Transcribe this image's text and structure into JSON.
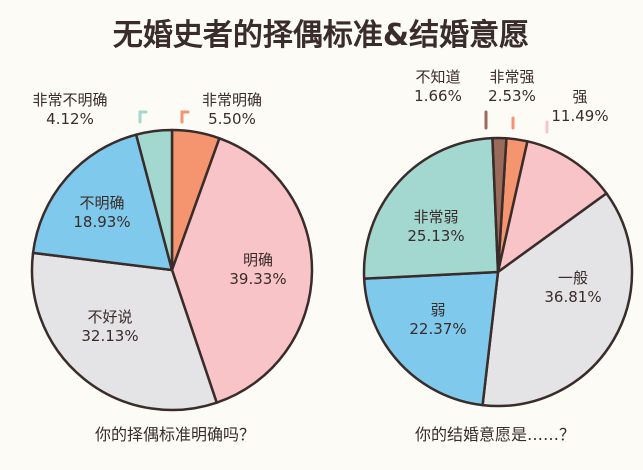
{
  "title": "无婚史者的择偶标准&结婚意愿",
  "chart_data": [
    {
      "type": "pie",
      "subtitle": "你的择偶标准明确吗？",
      "slices": [
        {
          "label": "非常明确",
          "value": 5.5,
          "display": "5.50%",
          "color": "#f4956f"
        },
        {
          "label": "明确",
          "value": 39.33,
          "display": "39.33%",
          "color": "#f8c4c8"
        },
        {
          "label": "不好说",
          "value": 32.13,
          "display": "32.13%",
          "color": "#e4e3e5"
        },
        {
          "label": "不明确",
          "value": 18.93,
          "display": "18.93%",
          "color": "#7fcaec"
        },
        {
          "label": "非常不明确",
          "value": 4.12,
          "display": "4.12%",
          "color": "#a2d8cf"
        }
      ]
    },
    {
      "type": "pie",
      "subtitle": "你的结婚意愿是……？",
      "slices": [
        {
          "label": "非常强",
          "value": 2.53,
          "display": "2.53%",
          "color": "#f4956f"
        },
        {
          "label": "强",
          "value": 11.49,
          "display": "11.49%",
          "color": "#f8c4c8"
        },
        {
          "label": "一般",
          "value": 36.81,
          "display": "36.81%",
          "color": "#e4e3e5"
        },
        {
          "label": "弱",
          "value": 22.37,
          "display": "22.37%",
          "color": "#7fcaec"
        },
        {
          "label": "非常弱",
          "value": 25.13,
          "display": "25.13%",
          "color": "#a2d8cf"
        },
        {
          "label": "不知道",
          "value": 1.66,
          "display": "1.66%",
          "color": "#9a6a5a"
        }
      ]
    }
  ]
}
